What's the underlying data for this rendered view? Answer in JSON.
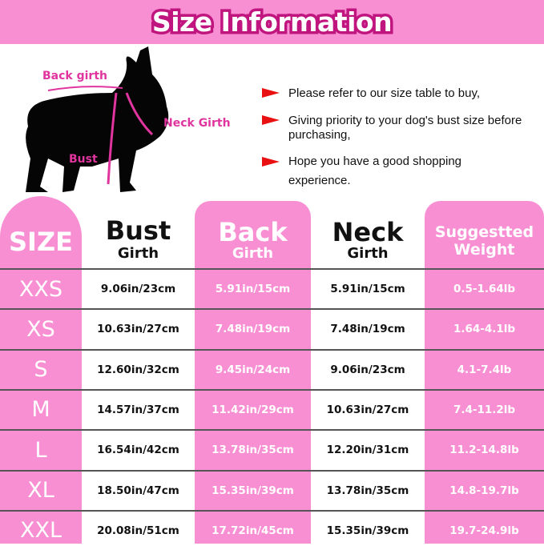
{
  "title": "Size Information",
  "colors": {
    "pink": "#f98fd3",
    "title_outline": "#c0147f",
    "label_pink": "#e0349e",
    "arrow_red": "#e81010"
  },
  "diagram": {
    "back_girth": "Back girth",
    "neck_girth": "Neck Girth",
    "bust": "Bust"
  },
  "notes": [
    "Please refer to our size table to buy,",
    "Giving priority to your dog's bust size before purchasing,",
    "Hope you have a good shopping experience."
  ],
  "headers": {
    "size": "SIZE",
    "bust_1": "Bust",
    "bust_2": "Girth",
    "back_1": "Back",
    "back_2": "Girth",
    "neck_1": "Neck",
    "neck_2": "Girth",
    "weight_1": "Suggestted",
    "weight_2": "Weight"
  },
  "rows": [
    [
      "XXS",
      "9.06in/23cm",
      "5.91in/15cm",
      "5.91in/15cm",
      "0.5-1.64lb"
    ],
    [
      "XS",
      "10.63in/27cm",
      "7.48in/19cm",
      "7.48in/19cm",
      "1.64-4.1lb"
    ],
    [
      "S",
      "12.60in/32cm",
      "9.45in/24cm",
      "9.06in/23cm",
      "4.1-7.4lb"
    ],
    [
      "M",
      "14.57in/37cm",
      "11.42in/29cm",
      "10.63in/27cm",
      "7.4-11.2lb"
    ],
    [
      "L",
      "16.54in/42cm",
      "13.78in/35cm",
      "12.20in/31cm",
      "11.2-14.8lb"
    ],
    [
      "XL",
      "18.50in/47cm",
      "15.35in/39cm",
      "13.78in/35cm",
      "14.8-19.7lb"
    ],
    [
      "XXL",
      "20.08in/51cm",
      "17.72in/45cm",
      "15.35in/39cm",
      "19.7-24.9lb"
    ]
  ]
}
